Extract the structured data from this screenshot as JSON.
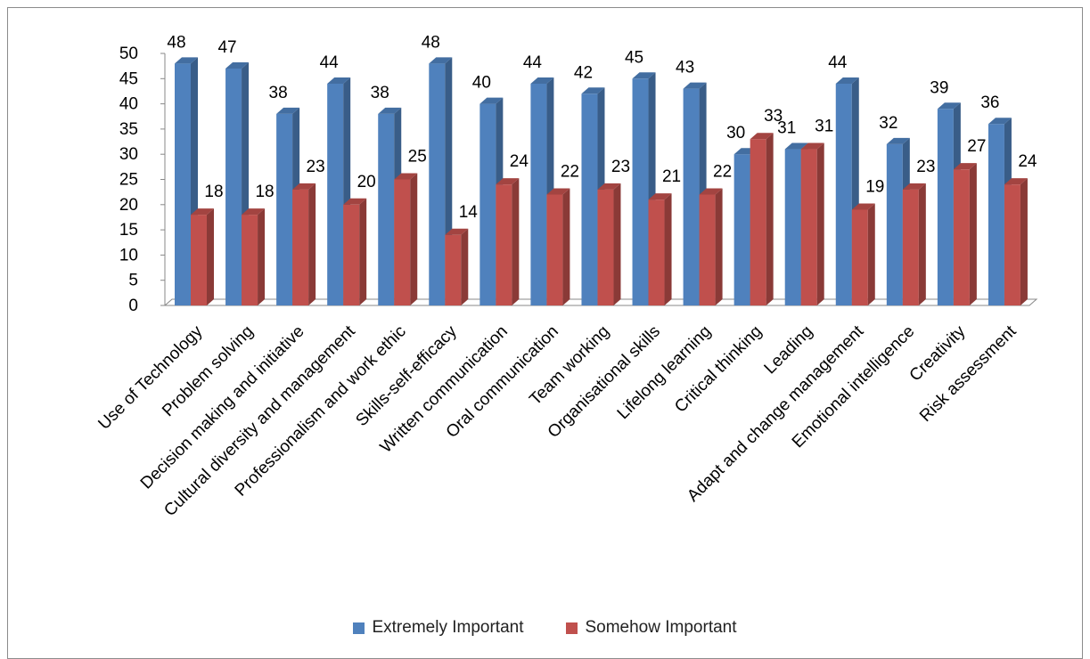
{
  "chart_data": {
    "type": "bar",
    "categories": [
      "Use of Technology",
      "Problem solving",
      "Decision making and initiative",
      "Cultural diversity and management",
      "Professionalism and work ethic",
      "Skills-self-efficacy",
      "Written communication",
      "Oral communication",
      "Team working",
      "Organisational skills",
      "Lifelong learning",
      "Critical thinking",
      "Leading",
      "Adapt and change management",
      "Emotional intelligence",
      "Creativity",
      "Risk assessment"
    ],
    "series": [
      {
        "name": "Extremely Important",
        "values": [
          48,
          47,
          38,
          44,
          38,
          48,
          40,
          44,
          42,
          45,
          43,
          30,
          31,
          44,
          32,
          39,
          36
        ],
        "color": "#4F81BD"
      },
      {
        "name": "Somehow Important",
        "values": [
          18,
          18,
          23,
          20,
          25,
          14,
          24,
          22,
          23,
          21,
          22,
          33,
          31,
          19,
          23,
          27,
          24
        ],
        "color": "#C0504D"
      }
    ],
    "title": "",
    "xlabel": "",
    "ylabel": "",
    "ylim": [
      0,
      50
    ],
    "yticks": [
      "0",
      "5",
      "10",
      "15",
      "20",
      "25",
      "30",
      "35",
      "40",
      "45",
      "50"
    ],
    "grid": false,
    "legend_position": "bottom",
    "style": "3d-clustered-column"
  }
}
